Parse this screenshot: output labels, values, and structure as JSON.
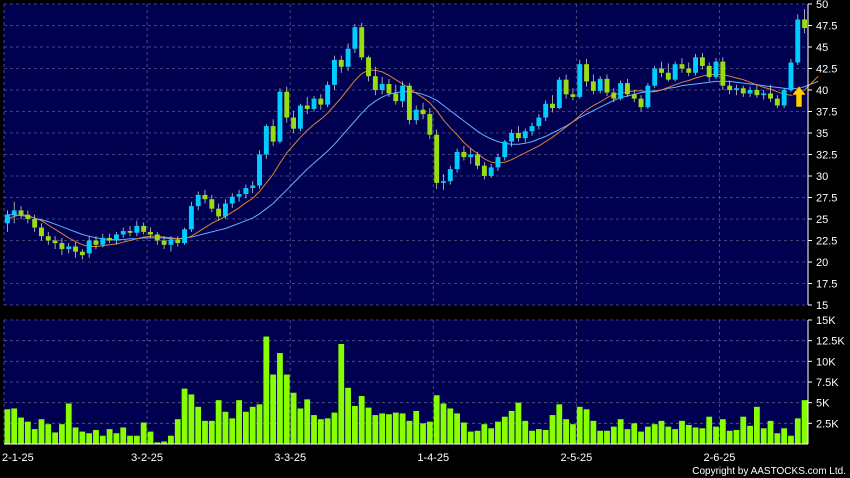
{
  "chart_data": {
    "type": "candlestick",
    "copyright": "Copyright by AASTOCKS.com Ltd.",
    "colors": {
      "background": "#000000",
      "plot_bg": "#000050",
      "grid": "#5a5a8a",
      "up": "#00ccff",
      "down": "#99dd11",
      "ma_short": "#e08030",
      "ma_long": "#66b0ff",
      "volume": "#88ff00",
      "arrow": "#ffcc00"
    },
    "price_axis": {
      "ticks": [
        "50",
        "47.5",
        "45",
        "42.5",
        "40",
        "37.5",
        "35",
        "32.5",
        "30",
        "27.5",
        "25",
        "22.5",
        "20",
        "17.5",
        "15"
      ],
      "min": 15,
      "max": 50
    },
    "volume_axis": {
      "ticks": [
        "15K",
        "12.5K",
        "10K",
        "7.5K",
        "5K",
        "2.5K"
      ],
      "min": 0,
      "max": 15000
    },
    "x_axis": {
      "labels": [
        "2-1-25",
        "3-2-25",
        "3-3-25",
        "1-4-25",
        "2-5-25",
        "2-6-25"
      ],
      "label_index": [
        0,
        21,
        42,
        63,
        84,
        105
      ]
    },
    "candles": [
      [
        24.5,
        26,
        23.5,
        25.5
      ],
      [
        25.5,
        27,
        24.5,
        26
      ],
      [
        26,
        26.5,
        25,
        25.5
      ],
      [
        25.5,
        26,
        24.5,
        25
      ],
      [
        25,
        25.5,
        23.5,
        24
      ],
      [
        24,
        24.5,
        22.5,
        23
      ],
      [
        23,
        23.5,
        22,
        22.5
      ],
      [
        22.5,
        23,
        21.5,
        22.2
      ],
      [
        22.2,
        22.8,
        20.8,
        21.5
      ],
      [
        21.5,
        22.2,
        21,
        21.8
      ],
      [
        21.8,
        22.3,
        20.5,
        21.2
      ],
      [
        21.2,
        21.5,
        20.3,
        20.8
      ],
      [
        21,
        23,
        20.5,
        22.5
      ],
      [
        22.5,
        23,
        21.5,
        22
      ],
      [
        22,
        23.3,
        21.7,
        22.8
      ],
      [
        22.8,
        23.3,
        22.2,
        22.5
      ],
      [
        22.5,
        23.5,
        22,
        23.2
      ],
      [
        23.2,
        24,
        22.8,
        23.6
      ],
      [
        23.6,
        24.2,
        23,
        23.4
      ],
      [
        23.4,
        24.8,
        23,
        24.2
      ],
      [
        24.2,
        24.6,
        23.2,
        23.5
      ],
      [
        23.5,
        24,
        22.8,
        23.2
      ],
      [
        23.2,
        23.5,
        22,
        22.5
      ],
      [
        22.5,
        23,
        21.5,
        22
      ],
      [
        22,
        23,
        21.2,
        22.6
      ],
      [
        22.6,
        23,
        21.8,
        22.2
      ],
      [
        22.2,
        24,
        22,
        23.8
      ],
      [
        23.8,
        27,
        23.5,
        26.5
      ],
      [
        26.5,
        28.2,
        26,
        27.8
      ],
      [
        27.8,
        28.4,
        26.8,
        27.3
      ],
      [
        27.3,
        27.8,
        25.8,
        26.2
      ],
      [
        26.2,
        26.8,
        24.8,
        25.3
      ],
      [
        25.3,
        27.3,
        25,
        26.8
      ],
      [
        26.8,
        28,
        26.3,
        27.6
      ],
      [
        27.6,
        28.4,
        27,
        27.9
      ],
      [
        27.9,
        29,
        27.4,
        28.6
      ],
      [
        28.6,
        29.4,
        28,
        28.9
      ],
      [
        28.9,
        33,
        28.5,
        32.5
      ],
      [
        32.5,
        36,
        32,
        35.8
      ],
      [
        35.8,
        36.6,
        33.5,
        34
      ],
      [
        34,
        40.2,
        33.8,
        39.8
      ],
      [
        39.8,
        40.4,
        36.2,
        36.8
      ],
      [
        36.8,
        37.6,
        35,
        35.5
      ],
      [
        35.5,
        38.4,
        35.2,
        38.2
      ],
      [
        38.2,
        39.2,
        37.2,
        37.8
      ],
      [
        37.8,
        39.3,
        37.5,
        39
      ],
      [
        39,
        39.5,
        37.7,
        38.3
      ],
      [
        38.3,
        41,
        38,
        40.6
      ],
      [
        40.6,
        44,
        40,
        43.5
      ],
      [
        43.5,
        44,
        42,
        42.7
      ],
      [
        42.7,
        45.4,
        42.2,
        44.8
      ],
      [
        44.8,
        47.7,
        44.3,
        47.3
      ],
      [
        47.3,
        47.8,
        43.5,
        43.8
      ],
      [
        43.8,
        44,
        41,
        41.6
      ],
      [
        41.6,
        42.7,
        39.4,
        40
      ],
      [
        40,
        41.5,
        39.5,
        40.7
      ],
      [
        40.7,
        41.3,
        39.2,
        39.6
      ],
      [
        39.6,
        40.6,
        38.3,
        38.7
      ],
      [
        38.7,
        41,
        38,
        40.5
      ],
      [
        40.5,
        40.8,
        36,
        36.5
      ],
      [
        36.5,
        38.2,
        36,
        37.7
      ],
      [
        37.7,
        38.5,
        36.6,
        37.2
      ],
      [
        37.2,
        37.9,
        34.3,
        34.8
      ],
      [
        34.8,
        35.4,
        28.5,
        29.2
      ],
      [
        29.2,
        30.2,
        28.4,
        29.4
      ],
      [
        29.4,
        31.2,
        29,
        30.8
      ],
      [
        30.8,
        33.2,
        30.4,
        32.8
      ],
      [
        32.8,
        33.5,
        31.8,
        32.2
      ],
      [
        32.2,
        33.2,
        31.4,
        32.5
      ],
      [
        32.5,
        32.8,
        30.8,
        31.2
      ],
      [
        31.2,
        31.6,
        29.6,
        30
      ],
      [
        30,
        31.4,
        29.8,
        31
      ],
      [
        31,
        32.6,
        30.6,
        32.2
      ],
      [
        32.2,
        34.2,
        31.8,
        34
      ],
      [
        34,
        35.4,
        33.4,
        35
      ],
      [
        35,
        35.8,
        34,
        34.4
      ],
      [
        34.4,
        35.5,
        33.9,
        35.2
      ],
      [
        35.2,
        36.2,
        34.7,
        35.8
      ],
      [
        35.8,
        37.2,
        35.4,
        36.8
      ],
      [
        36.8,
        38.8,
        36.4,
        38.4
      ],
      [
        38.4,
        39.4,
        37.4,
        37.9
      ],
      [
        37.9,
        41.5,
        37.8,
        41.2
      ],
      [
        41.2,
        41.8,
        39,
        39.5
      ],
      [
        39.5,
        40.2,
        38.8,
        39.2
      ],
      [
        39.2,
        43.5,
        39,
        43
      ],
      [
        43,
        43.6,
        40.4,
        41
      ],
      [
        41,
        41.8,
        39.5,
        39.9
      ],
      [
        39.9,
        41.6,
        39.6,
        41.3
      ],
      [
        41.3,
        41.8,
        39.3,
        39.7
      ],
      [
        39.7,
        40.2,
        38.6,
        39
      ],
      [
        39,
        41.1,
        38.8,
        40.8
      ],
      [
        40.8,
        41.3,
        39.2,
        39.5
      ],
      [
        39.5,
        40,
        38.6,
        39
      ],
      [
        39,
        39.4,
        37.5,
        38
      ],
      [
        38,
        40.8,
        37.8,
        40.5
      ],
      [
        40.5,
        42.8,
        40.2,
        42.5
      ],
      [
        42.5,
        43.3,
        41.5,
        42
      ],
      [
        42,
        43.1,
        41,
        41.2
      ],
      [
        41.2,
        43.3,
        41,
        43
      ],
      [
        43,
        43.7,
        42,
        42.5
      ],
      [
        42.5,
        43.2,
        41.6,
        42
      ],
      [
        42,
        44.2,
        41.7,
        43.8
      ],
      [
        43.8,
        44.3,
        42.4,
        42.8
      ],
      [
        42.8,
        43.2,
        41,
        41.5
      ],
      [
        41.5,
        43.7,
        41.3,
        43.3
      ],
      [
        43.3,
        43.8,
        40,
        40.5
      ],
      [
        40.5,
        41.1,
        39.5,
        40
      ],
      [
        40,
        40.6,
        39.4,
        40.2
      ],
      [
        40.2,
        40.5,
        39.2,
        39.6
      ],
      [
        39.6,
        40.4,
        39.2,
        40
      ],
      [
        40,
        40.6,
        39.1,
        39.4
      ],
      [
        39.4,
        40,
        38.9,
        39.6
      ],
      [
        39.6,
        40.6,
        38.6,
        39
      ],
      [
        39,
        39.4,
        37.9,
        38.2
      ],
      [
        38.2,
        40.2,
        37.9,
        40
      ],
      [
        40,
        43.6,
        39.8,
        43.2
      ],
      [
        43.2,
        48.8,
        42.9,
        48.2
      ],
      [
        48.2,
        49.4,
        46.6,
        47.2
      ]
    ],
    "ma_short": [
      25,
      25.3,
      25.5,
      25.4,
      25.1,
      24.8,
      24.3,
      23.8,
      23.3,
      22.8,
      22.4,
      22,
      21.8,
      21.8,
      21.9,
      22,
      22.1,
      22.3,
      22.5,
      22.7,
      22.9,
      23,
      23,
      22.9,
      22.8,
      22.7,
      22.7,
      23,
      23.5,
      24,
      24.5,
      24.9,
      25.3,
      25.8,
      26.3,
      26.9,
      27.4,
      28.2,
      29.2,
      30.2,
      31.5,
      32.7,
      33.6,
      34.5,
      35.3,
      36,
      36.6,
      37.3,
      38.2,
      39.1,
      40.1,
      41.1,
      41.9,
      42.3,
      42.3,
      42.1,
      41.7,
      41.2,
      40.7,
      40.2,
      39.6,
      39.1,
      38.5,
      37.6,
      36.5,
      35.6,
      34.8,
      33.9,
      33.2,
      32.6,
      32,
      31.6,
      31.5,
      31.6,
      31.9,
      32.3,
      32.7,
      33.1,
      33.5,
      34,
      34.5,
      35.1,
      35.7,
      36.3,
      37,
      37.7,
      38.2,
      38.6,
      39.1,
      39.5,
      39.6,
      39.8,
      39.9,
      39.9,
      39.8,
      39.8,
      40,
      40.3,
      40.6,
      40.9,
      41.1,
      41.4,
      41.6,
      41.8,
      41.8,
      41.8,
      41.6,
      41.4,
      41.2,
      40.9,
      40.6,
      40.3,
      40.1,
      39.8,
      39.5,
      39.4,
      39.5,
      40,
      40.8,
      41.6
    ],
    "ma_long": [
      25.5,
      25.5,
      25.4,
      25.3,
      25.1,
      24.9,
      24.7,
      24.4,
      24.1,
      23.8,
      23.5,
      23.2,
      23,
      22.8,
      22.7,
      22.6,
      22.6,
      22.6,
      22.7,
      22.7,
      22.8,
      22.8,
      22.8,
      22.8,
      22.7,
      22.7,
      22.8,
      22.9,
      23.1,
      23.3,
      23.5,
      23.7,
      23.9,
      24.2,
      24.5,
      24.8,
      25.1,
      25.6,
      26.2,
      26.8,
      27.6,
      28.4,
      29.2,
      30,
      30.8,
      31.5,
      32.2,
      32.9,
      33.7,
      34.6,
      35.5,
      36.4,
      37.3,
      38.1,
      38.7,
      39.2,
      39.5,
      39.7,
      39.8,
      39.8,
      39.7,
      39.5,
      39.2,
      38.8,
      38.2,
      37.6,
      37,
      36.4,
      35.8,
      35.2,
      34.7,
      34.3,
      34,
      33.8,
      33.7,
      33.7,
      33.8,
      34,
      34.3,
      34.6,
      35,
      35.4,
      35.8,
      36.3,
      36.8,
      37.2,
      37.6,
      38,
      38.4,
      38.8,
      39.1,
      39.3,
      39.5,
      39.7,
      39.8,
      39.9,
      40,
      40.2,
      40.3,
      40.5,
      40.6,
      40.7,
      40.8,
      40.9,
      41,
      41,
      41,
      40.9,
      40.8,
      40.7,
      40.6,
      40.5,
      40.4,
      40.3,
      40.2,
      40.1,
      40.2,
      40.4,
      40.7,
      41
    ]
  }
}
